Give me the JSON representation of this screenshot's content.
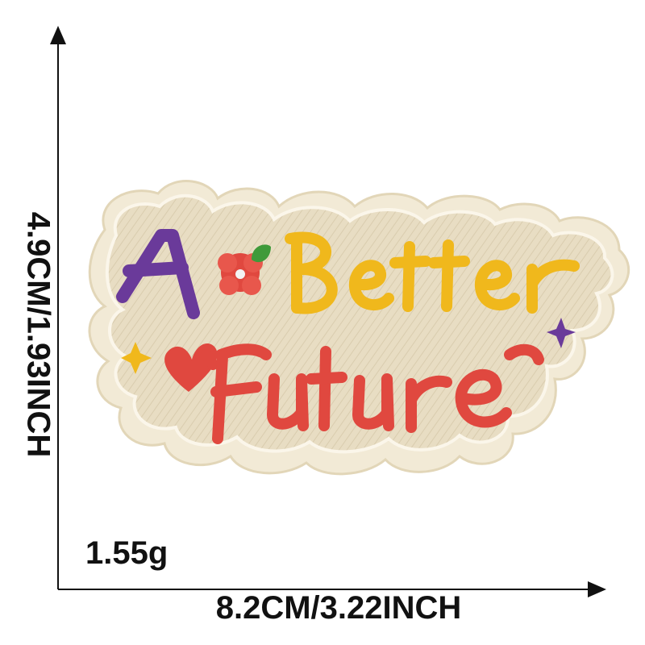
{
  "dimensions": {
    "width": "8.2CM/3.22INCH",
    "height": "4.9CM/1.93INCH",
    "weight": "1.55g"
  },
  "patch": {
    "line1_word1": "A",
    "line1_word2": "Better",
    "line2": "Future",
    "colors": {
      "fabric": "#e9dfc6",
      "border": "#f3ecd9",
      "purple": "#6a3a9a",
      "yellow": "#f0b81c",
      "red": "#e0483f",
      "green": "#3f9a3a"
    }
  }
}
